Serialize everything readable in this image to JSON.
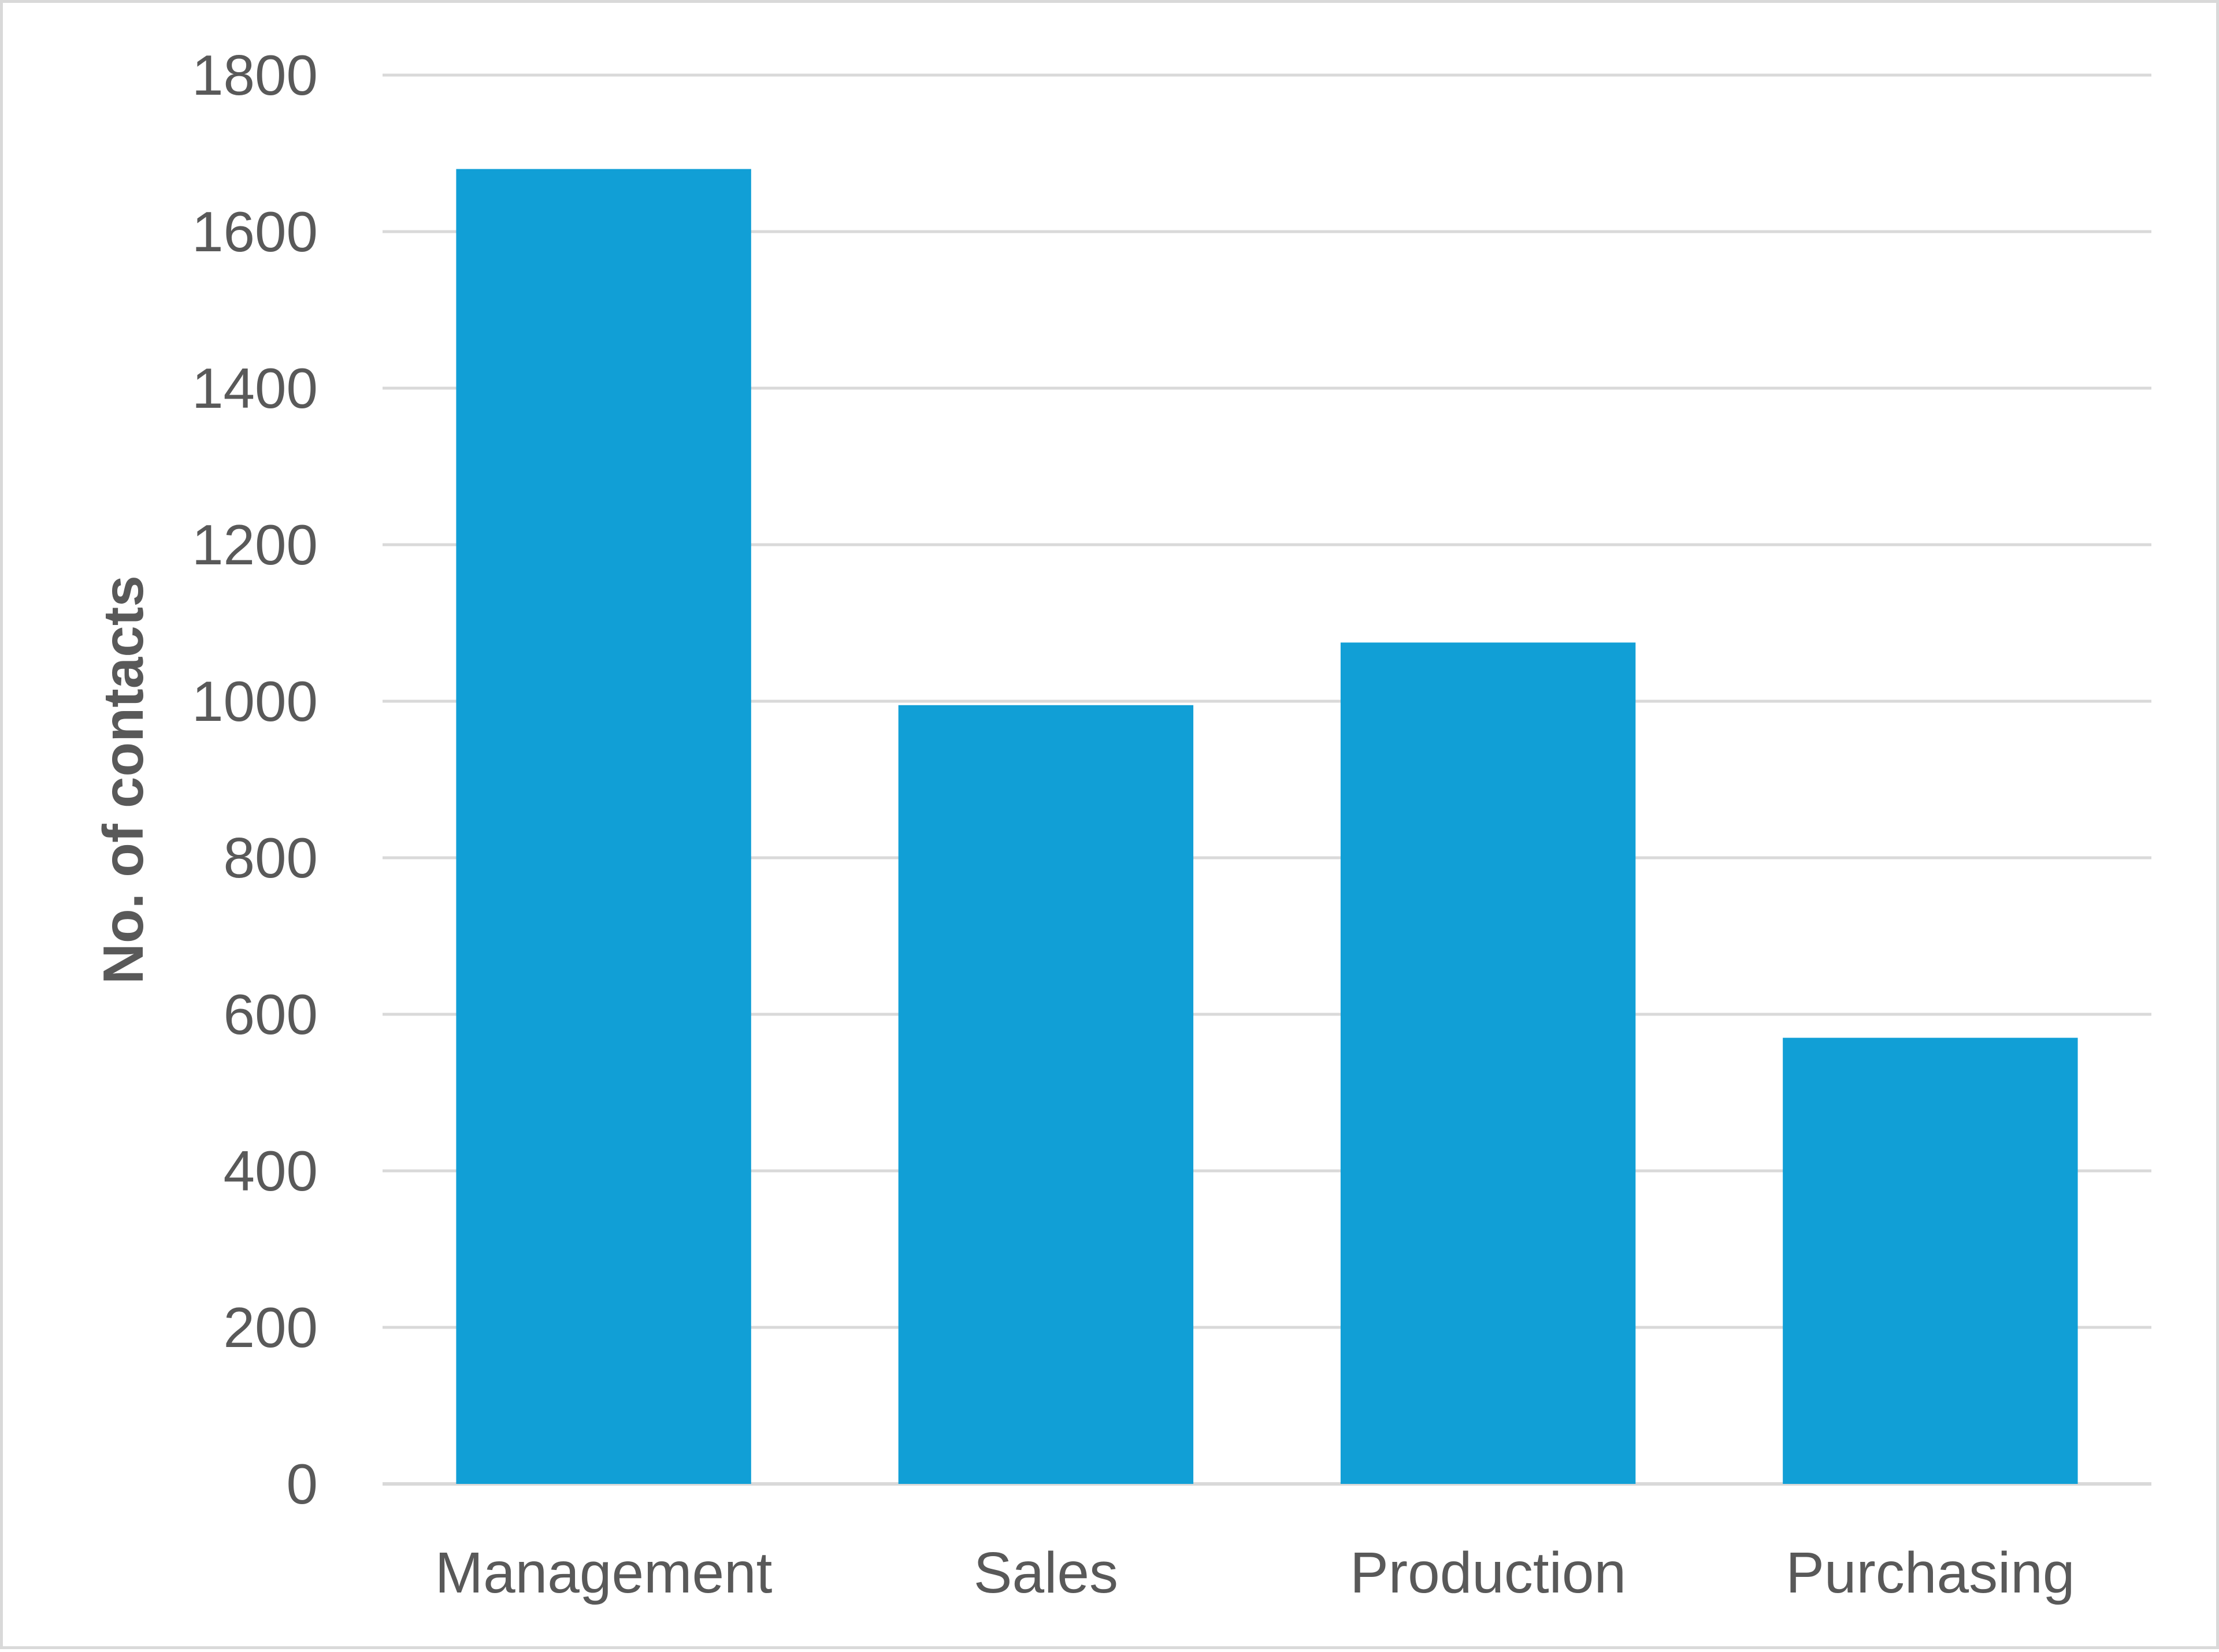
{
  "chart_data": {
    "type": "bar",
    "title": "",
    "xlabel": "",
    "ylabel": "No. of contacts",
    "categories": [
      "Management",
      "Sales",
      "Production",
      "Purchasing"
    ],
    "values": [
      1680,
      995,
      1075,
      570
    ],
    "ylim": [
      0,
      1800
    ],
    "yticks": [
      0,
      200,
      400,
      600,
      800,
      1000,
      1200,
      1400,
      1600,
      1800
    ],
    "grid": true,
    "legend": "none",
    "colors": {
      "bar": "#119fd6",
      "grid": "#d9d9d9",
      "text": "#595959",
      "border": "#d9d9d9"
    }
  }
}
